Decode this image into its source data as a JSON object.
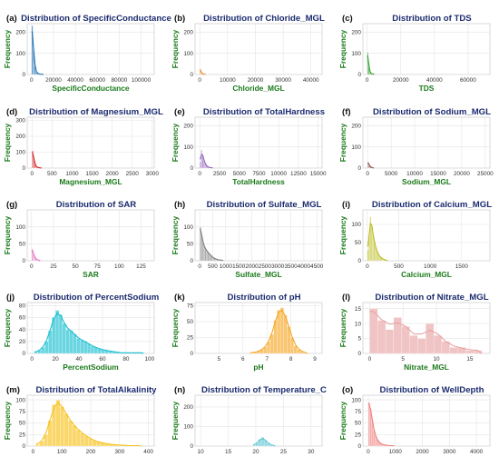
{
  "chart_data": [
    {
      "label": "(a)",
      "title": "Distribution of SpecificConductance",
      "xlabel": "SpecificConductance",
      "ylabel": "Frequency",
      "type": "bar",
      "color": "#1f6fb0",
      "xlim": [
        -4000,
        112000
      ],
      "ylim": [
        0,
        240
      ],
      "xticks": [
        0,
        20000,
        40000,
        60000,
        80000,
        100000
      ],
      "yticks": [
        0,
        100,
        200
      ],
      "bin_start": 0,
      "bin_width": 1200,
      "values": [
        230,
        115,
        40,
        12,
        5,
        3,
        2,
        1,
        1
      ]
    },
    {
      "label": "(b)",
      "title": "Distribution of Chloride_MGL",
      "xlabel": "Chloride_MGL",
      "ylabel": "Frequency",
      "type": "bar",
      "color": "#e8872a",
      "xlim": [
        -1700,
        44000
      ],
      "ylim": [
        0,
        240
      ],
      "xticks": [
        0,
        10000,
        20000,
        30000,
        40000
      ],
      "yticks": [
        0,
        100,
        200
      ],
      "bin_start": 0,
      "bin_width": 420,
      "values": [
        26,
        6,
        2,
        1,
        1
      ]
    },
    {
      "label": "(c)",
      "title": "Distribution of TDS",
      "xlabel": "TDS",
      "ylabel": "Frequency",
      "type": "bar",
      "color": "#2ca02c",
      "xlim": [
        -2500,
        73000
      ],
      "ylim": [
        0,
        240
      ],
      "xticks": [
        0,
        20000,
        40000,
        60000
      ],
      "yticks": [
        0,
        100,
        200
      ],
      "bin_start": 0,
      "bin_width": 700,
      "values": [
        105,
        35,
        9,
        4,
        2,
        1
      ]
    },
    {
      "label": "(d)",
      "title": "Distribution of Magnesium_MGL",
      "xlabel": "Magnesium_MGL",
      "ylabel": "Frequency",
      "type": "bar",
      "color": "#d62728",
      "xlim": [
        -120,
        3050
      ],
      "ylim": [
        0,
        320
      ],
      "xticks": [
        0,
        500,
        1000,
        1500,
        2000,
        2500,
        3000
      ],
      "yticks": [
        0,
        100,
        200,
        300
      ],
      "bin_start": 0,
      "bin_width": 30,
      "values": [
        110,
        60,
        25,
        10,
        5,
        3,
        2,
        1
      ]
    },
    {
      "label": "(e)",
      "title": "Distribution of TotalHardness",
      "xlabel": "TotalHardness",
      "ylabel": "Frequency",
      "type": "bar",
      "color": "#9467bd",
      "xlim": [
        -600,
        15500
      ],
      "ylim": [
        0,
        240
      ],
      "xticks": [
        0,
        2500,
        5000,
        7500,
        10000,
        12500,
        15000
      ],
      "yticks": [
        0,
        100,
        200
      ],
      "bin_start": 0,
      "bin_width": 150,
      "values": [
        30,
        85,
        60,
        40,
        22,
        12,
        7,
        4,
        3,
        2,
        1
      ]
    },
    {
      "label": "(f)",
      "title": "Distribution of Sodium_MGL",
      "xlabel": "Sodium_MGL",
      "ylabel": "Frequency",
      "type": "bar",
      "color": "#8c564b",
      "xlim": [
        -1000,
        26000
      ],
      "ylim": [
        0,
        240
      ],
      "xticks": [
        0,
        5000,
        10000,
        15000,
        20000,
        25000
      ],
      "yticks": [
        0,
        100,
        200
      ],
      "bin_start": 0,
      "bin_width": 260,
      "values": [
        28,
        12,
        5,
        2,
        1
      ]
    },
    {
      "label": "(g)",
      "title": "Distribution of SAR",
      "xlabel": "SAR",
      "ylabel": "Frequency",
      "type": "bar",
      "color": "#e377c2",
      "xlim": [
        -5,
        140
      ],
      "ylim": [
        0,
        150
      ],
      "xticks": [
        0,
        25,
        50,
        75,
        100,
        125
      ],
      "yticks": [
        0,
        50,
        100
      ],
      "bin_start": 0,
      "bin_width": 1.4,
      "values": [
        35,
        20,
        12,
        6,
        3,
        2,
        1
      ]
    },
    {
      "label": "(h)",
      "title": "Distribution of Sulfate_MGL",
      "xlabel": "Sulfate_MGL",
      "ylabel": "Frequency",
      "type": "bar",
      "color": "#7f7f7f",
      "xlim": [
        -180,
        4700
      ],
      "ylim": [
        0,
        150
      ],
      "xticks": [
        0,
        500,
        1000,
        1500,
        2000,
        2500,
        3000,
        3500,
        4000,
        4500
      ],
      "yticks": [
        0,
        50,
        100
      ],
      "bin_start": 0,
      "bin_width": 50,
      "values": [
        100,
        75,
        55,
        42,
        35,
        30,
        24,
        20,
        16,
        12,
        9,
        7,
        5,
        4,
        3,
        2,
        2,
        1
      ]
    },
    {
      "label": "(i)",
      "title": "Distribution of Calcium_MGL",
      "xlabel": "Calcium_MGL",
      "ylabel": "Frequency",
      "type": "bar",
      "color": "#bcbd22",
      "xlim": [
        -70,
        1950
      ],
      "ylim": [
        0,
        140
      ],
      "xticks": [
        0,
        500,
        1000,
        1500
      ],
      "yticks": [
        0,
        50,
        100
      ],
      "bin_start": 0,
      "bin_width": 20,
      "values": [
        30,
        70,
        120,
        100,
        75,
        55,
        40,
        28,
        20,
        14,
        10,
        7,
        5,
        3,
        2,
        1
      ]
    },
    {
      "label": "(j)",
      "title": "Distribution of PercentSodium",
      "xlabel": "PercentSodium",
      "ylabel": "Frequency",
      "type": "bar",
      "color": "#17becf",
      "xlim": [
        -4,
        104
      ],
      "ylim": [
        0,
        85
      ],
      "xticks": [
        0,
        20,
        40,
        60,
        80,
        100
      ],
      "yticks": [
        0,
        20,
        40,
        60,
        80
      ],
      "bin_start": 2,
      "bin_width": 3,
      "values": [
        2,
        5,
        10,
        20,
        38,
        60,
        72,
        65,
        50,
        40,
        38,
        32,
        25,
        22,
        20,
        16,
        12,
        10,
        8,
        6,
        5,
        4,
        3,
        2,
        1,
        1,
        1,
        1,
        1,
        1,
        1
      ]
    },
    {
      "label": "(k)",
      "title": "Distribution of pH",
      "xlabel": "pH",
      "ylabel": "Frequency",
      "type": "bar",
      "color": "#f5a623",
      "xlim": [
        4,
        9.3
      ],
      "ylim": [
        0,
        80
      ],
      "xticks": [
        5,
        6,
        7,
        8,
        9
      ],
      "yticks": [
        0,
        25,
        50,
        75
      ],
      "bin_start": 6.3,
      "bin_width": 0.14,
      "values": [
        1,
        2,
        3,
        6,
        10,
        18,
        30,
        52,
        68,
        72,
        60,
        42,
        25,
        12,
        6,
        3,
        1
      ]
    },
    {
      "label": "(l)",
      "title": "Distribution of Nitrate_MGL",
      "xlabel": "Nitrate_MGL",
      "ylabel": "Frequency",
      "type": "bar",
      "color": "#e8a4a4",
      "xlim": [
        -1,
        18
      ],
      "ylim": [
        0,
        17
      ],
      "xticks": [
        0,
        5,
        10,
        15
      ],
      "yticks": [
        0,
        5,
        10,
        15
      ],
      "bin_start": 0,
      "bin_width": 1.2,
      "values": [
        15,
        11,
        8,
        12,
        9,
        6,
        5,
        10,
        6,
        4,
        2,
        2,
        1,
        1
      ]
    },
    {
      "label": "(m)",
      "title": "Distribution of TotalAlkalinity",
      "xlabel": "TotalAlkalinity",
      "ylabel": "Frequency",
      "type": "bar",
      "color": "#f7c21b",
      "xlim": [
        -20,
        420
      ],
      "ylim": [
        0,
        110
      ],
      "xticks": [
        0,
        100,
        200,
        300,
        400
      ],
      "yticks": [
        0,
        25,
        50,
        75,
        100
      ],
      "bin_start": 10,
      "bin_width": 14,
      "values": [
        3,
        10,
        25,
        55,
        90,
        100,
        85,
        70,
        55,
        45,
        35,
        28,
        22,
        16,
        12,
        9,
        7,
        5,
        4,
        3,
        2,
        2,
        1,
        1,
        1,
        1
      ]
    },
    {
      "label": "(n)",
      "title": "Distribution of Temperature_C",
      "xlabel": "Temperature_C",
      "ylabel": "Frequency",
      "type": "bar",
      "color": "#5bc4d4",
      "xlim": [
        9,
        32
      ],
      "ylim": [
        0,
        260
      ],
      "xticks": [
        10,
        15,
        20,
        25,
        30
      ],
      "yticks": [
        0,
        100,
        200
      ],
      "bin_start": 19.5,
      "bin_width": 0.5,
      "values": [
        5,
        15,
        35,
        45,
        30,
        15,
        5,
        2
      ]
    },
    {
      "label": "(o)",
      "title": "Distribution of WellDepth",
      "xlabel": "WellDepth",
      "ylabel": "Frequency",
      "type": "bar",
      "color": "#f08080",
      "xlim": [
        -200,
        4500
      ],
      "ylim": [
        0,
        110
      ],
      "xticks": [
        0,
        1000,
        2000,
        3000,
        4000
      ],
      "yticks": [
        0,
        25,
        50,
        75,
        100
      ],
      "bin_start": 0,
      "bin_width": 60,
      "values": [
        95,
        80,
        55,
        35,
        22,
        14,
        9,
        6,
        4,
        3,
        2,
        2,
        1,
        1,
        1,
        1
      ]
    }
  ]
}
